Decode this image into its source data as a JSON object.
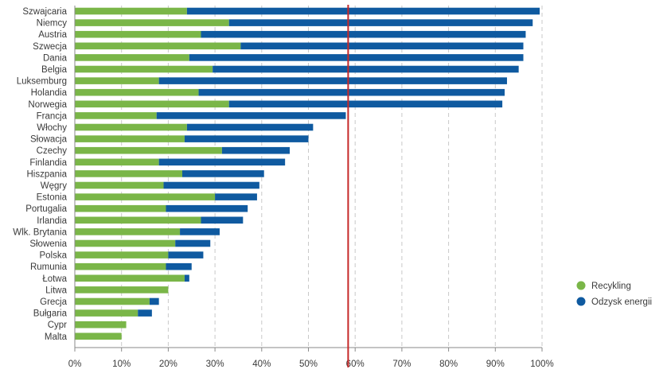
{
  "chart_data": {
    "type": "bar",
    "orientation": "horizontal",
    "stacked": true,
    "categories": [
      "Szwajcaria",
      "Niemcy",
      "Austria",
      "Szwecja",
      "Dania",
      "Belgia",
      "Luksemburg",
      "Holandia",
      "Norwegia",
      "Francja",
      "Włochy",
      "Słowacja",
      "Czechy",
      "Finlandia",
      "Hiszpania",
      "Węgry",
      "Estonia",
      "Portugalia",
      "Irlandia",
      "Wlk. Brytania",
      "Słowenia",
      "Polska",
      "Rumunia",
      "Łotwa",
      "Litwa",
      "Grecja",
      "Bułgaria",
      "Cypr",
      "Malta"
    ],
    "series": [
      {
        "name": "Recykling",
        "color": "#7ab648",
        "values": [
          24,
          33,
          27,
          35.5,
          24.5,
          29.5,
          18,
          26.5,
          33,
          17.5,
          24,
          23.5,
          31.5,
          18,
          23,
          19,
          30,
          19.5,
          27,
          22.5,
          21.5,
          20,
          19.5,
          23.5,
          20,
          16,
          13.5,
          11,
          10
        ]
      },
      {
        "name": "Odzysk energii",
        "color": "#0f5aa0",
        "values": [
          75.5,
          65,
          69.5,
          60.5,
          71.5,
          65.5,
          74.5,
          65.5,
          58.5,
          40.5,
          27,
          26.5,
          14.5,
          27,
          17.5,
          20.5,
          9,
          17.5,
          9,
          8.5,
          7.5,
          7.5,
          5.5,
          1,
          0,
          2,
          3,
          0,
          0
        ]
      }
    ],
    "xlim": [
      0,
      100
    ],
    "x_ticks": [
      "0%",
      "10%",
      "20%",
      "30%",
      "40%",
      "50%",
      "60%",
      "70%",
      "80%",
      "90%",
      "100%"
    ],
    "reference_line": {
      "value": 58.5,
      "color": "#c62828"
    },
    "grid": "vertical dashed",
    "legend_position": "bottom-right"
  }
}
